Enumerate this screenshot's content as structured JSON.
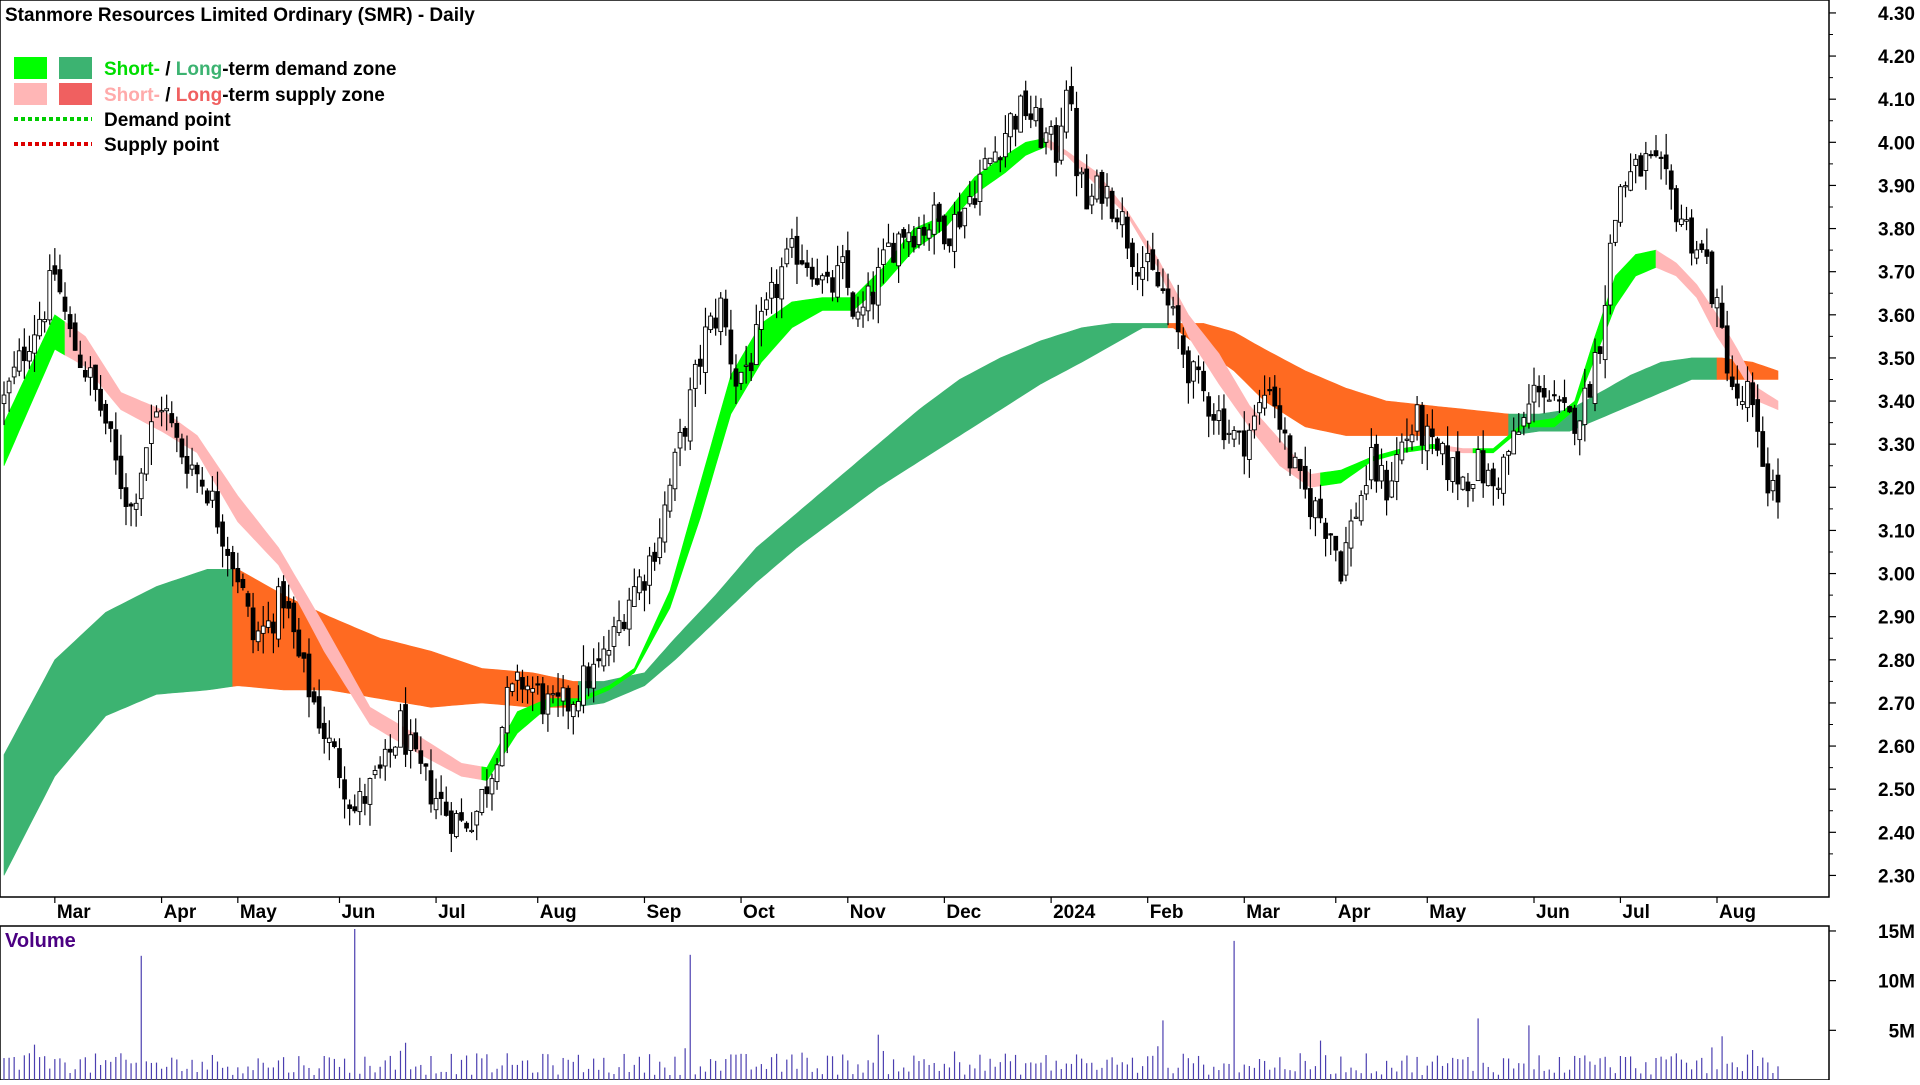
{
  "title": "Stanmore Resources Limited Ordinary (SMR) - Daily",
  "legend": {
    "demand_zone": {
      "short": "Short-",
      "sep": " / ",
      "long": "Long",
      "rest": "-term demand zone"
    },
    "supply_zone": {
      "short": "Short-",
      "sep": " / ",
      "long": "Long",
      "rest": "-term supply zone"
    },
    "demand_point": "Demand point",
    "supply_point": "Supply point"
  },
  "volume_label": "Volume",
  "colors": {
    "short_demand": "#00ff00",
    "long_demand": "#3cb371",
    "short_supply": "#ffb6b6",
    "long_supply": "#ff6a21",
    "legend_long_supply": "#f06060",
    "candle": "#000000",
    "volume_bar": "#4b3fb0",
    "volume_label": "#4b0082",
    "demand_point": "#00cc00",
    "supply_point": "#dd0000"
  },
  "chart_data": {
    "type": "line",
    "description_type": "candlestick-with-bands",
    "x_month_labels": [
      "Mar",
      "Apr",
      "May",
      "Jun",
      "Jul",
      "Aug",
      "Sep",
      "Oct",
      "Nov",
      "Dec",
      "2024",
      "Feb",
      "Mar",
      "Apr",
      "May",
      "Jun",
      "Jul",
      "Aug"
    ],
    "x_month_index": [
      10,
      31,
      46,
      66,
      85,
      105,
      126,
      145,
      166,
      185,
      206,
      225,
      244,
      262,
      280,
      301,
      318,
      337
    ],
    "total_bars": 350,
    "y_ticks": [
      "4.30",
      "4.20",
      "4.10",
      "4.00",
      "3.90",
      "3.80",
      "3.70",
      "3.60",
      "3.50",
      "3.40",
      "3.30",
      "3.20",
      "3.10",
      "3.00",
      "2.90",
      "2.80",
      "2.70",
      "2.60",
      "2.50",
      "2.40",
      "2.30"
    ],
    "ylim": [
      2.25,
      4.33
    ],
    "volume_ticks": [
      "15M",
      "10M",
      "5M"
    ],
    "volume_max": 15.5,
    "price_keyframes": [
      [
        0,
        3.4
      ],
      [
        5,
        3.55
      ],
      [
        8,
        3.62
      ],
      [
        10,
        3.7
      ],
      [
        13,
        3.55
      ],
      [
        17,
        3.45
      ],
      [
        20,
        3.35
      ],
      [
        22,
        3.25
      ],
      [
        25,
        3.15
      ],
      [
        28,
        3.3
      ],
      [
        31,
        3.4
      ],
      [
        34,
        3.3
      ],
      [
        37,
        3.25
      ],
      [
        40,
        3.2
      ],
      [
        43,
        3.1
      ],
      [
        46,
        3.0
      ],
      [
        49,
        2.85
      ],
      [
        52,
        2.88
      ],
      [
        55,
        2.95
      ],
      [
        58,
        2.8
      ],
      [
        61,
        2.7
      ],
      [
        64,
        2.6
      ],
      [
        66,
        2.55
      ],
      [
        69,
        2.45
      ],
      [
        72,
        2.5
      ],
      [
        75,
        2.55
      ],
      [
        78,
        2.65
      ],
      [
        81,
        2.55
      ],
      [
        84,
        2.5
      ],
      [
        87,
        2.45
      ],
      [
        90,
        2.42
      ],
      [
        93,
        2.45
      ],
      [
        96,
        2.55
      ],
      [
        99,
        2.7
      ],
      [
        102,
        2.75
      ],
      [
        105,
        2.72
      ],
      [
        108,
        2.68
      ],
      [
        111,
        2.7
      ],
      [
        114,
        2.75
      ],
      [
        117,
        2.78
      ],
      [
        120,
        2.85
      ],
      [
        123,
        2.95
      ],
      [
        126,
        3.0
      ],
      [
        129,
        3.1
      ],
      [
        132,
        3.25
      ],
      [
        135,
        3.4
      ],
      [
        138,
        3.55
      ],
      [
        141,
        3.62
      ],
      [
        144,
        3.45
      ],
      [
        147,
        3.5
      ],
      [
        150,
        3.6
      ],
      [
        153,
        3.7
      ],
      [
        156,
        3.75
      ],
      [
        159,
        3.72
      ],
      [
        162,
        3.65
      ],
      [
        165,
        3.7
      ],
      [
        168,
        3.58
      ],
      [
        171,
        3.65
      ],
      [
        174,
        3.75
      ],
      [
        177,
        3.8
      ],
      [
        180,
        3.8
      ],
      [
        183,
        3.82
      ],
      [
        186,
        3.8
      ],
      [
        189,
        3.85
      ],
      [
        192,
        3.92
      ],
      [
        195,
        3.98
      ],
      [
        198,
        4.05
      ],
      [
        201,
        4.08
      ],
      [
        204,
        4.02
      ],
      [
        207,
        3.98
      ],
      [
        209,
        4.15
      ],
      [
        211,
        3.95
      ],
      [
        213,
        3.85
      ],
      [
        216,
        3.9
      ],
      [
        219,
        3.85
      ],
      [
        222,
        3.75
      ],
      [
        225,
        3.7
      ],
      [
        228,
        3.65
      ],
      [
        231,
        3.55
      ],
      [
        234,
        3.45
      ],
      [
        237,
        3.4
      ],
      [
        240,
        3.35
      ],
      [
        243,
        3.3
      ],
      [
        246,
        3.35
      ],
      [
        249,
        3.45
      ],
      [
        252,
        3.3
      ],
      [
        255,
        3.2
      ],
      [
        258,
        3.15
      ],
      [
        261,
        3.1
      ],
      [
        263,
        3.02
      ],
      [
        266,
        3.15
      ],
      [
        269,
        3.25
      ],
      [
        272,
        3.2
      ],
      [
        275,
        3.3
      ],
      [
        278,
        3.35
      ],
      [
        281,
        3.28
      ],
      [
        284,
        3.25
      ],
      [
        287,
        3.22
      ],
      [
        290,
        3.25
      ],
      [
        293,
        3.2
      ],
      [
        296,
        3.28
      ],
      [
        299,
        3.35
      ],
      [
        302,
        3.45
      ],
      [
        305,
        3.38
      ],
      [
        308,
        3.35
      ],
      [
        311,
        3.4
      ],
      [
        314,
        3.55
      ],
      [
        316,
        3.75
      ],
      [
        318,
        3.9
      ],
      [
        320,
        3.92
      ],
      [
        323,
        3.95
      ],
      [
        326,
        3.92
      ],
      [
        329,
        3.85
      ],
      [
        332,
        3.78
      ],
      [
        335,
        3.72
      ],
      [
        337,
        3.6
      ],
      [
        339,
        3.5
      ],
      [
        341,
        3.38
      ],
      [
        343,
        3.42
      ],
      [
        345,
        3.3
      ],
      [
        347,
        3.22
      ],
      [
        349,
        3.18
      ]
    ],
    "short_band_keyframes": [
      [
        0,
        3.25,
        3.35
      ],
      [
        10,
        3.52,
        3.6
      ],
      [
        16,
        3.48,
        3.55
      ],
      [
        23,
        3.38,
        3.42
      ],
      [
        31,
        3.33,
        3.38
      ],
      [
        38,
        3.28,
        3.32
      ],
      [
        46,
        3.12,
        3.18
      ],
      [
        54,
        3.02,
        3.06
      ],
      [
        63,
        2.82,
        2.88
      ],
      [
        72,
        2.65,
        2.69
      ],
      [
        82,
        2.58,
        2.62
      ],
      [
        90,
        2.53,
        2.56
      ],
      [
        95,
        2.52,
        2.55
      ],
      [
        101,
        2.63,
        2.68
      ],
      [
        107,
        2.69,
        2.71
      ],
      [
        113,
        2.7,
        2.71
      ],
      [
        119,
        2.73,
        2.74
      ],
      [
        124,
        2.77,
        2.78
      ],
      [
        131,
        2.92,
        2.96
      ],
      [
        137,
        3.13,
        3.21
      ],
      [
        143,
        3.37,
        3.46
      ],
      [
        149,
        3.49,
        3.58
      ],
      [
        155,
        3.57,
        3.63
      ],
      [
        161,
        3.61,
        3.64
      ],
      [
        167,
        3.61,
        3.64
      ],
      [
        173,
        3.67,
        3.71
      ],
      [
        179,
        3.75,
        3.8
      ],
      [
        185,
        3.8,
        3.83
      ],
      [
        191,
        3.88,
        3.92
      ],
      [
        197,
        3.93,
        3.97
      ],
      [
        201,
        3.97,
        4.0
      ],
      [
        205,
        3.99,
        4.01
      ],
      [
        209,
        3.97,
        3.98
      ],
      [
        215,
        3.9,
        3.93
      ],
      [
        221,
        3.83,
        3.84
      ],
      [
        227,
        3.71,
        3.73
      ],
      [
        233,
        3.55,
        3.6
      ],
      [
        239,
        3.44,
        3.51
      ],
      [
        245,
        3.34,
        3.39
      ],
      [
        251,
        3.25,
        3.31
      ],
      [
        257,
        3.2,
        3.23
      ],
      [
        263,
        3.21,
        3.24
      ],
      [
        269,
        3.26,
        3.27
      ],
      [
        275,
        3.28,
        3.29
      ],
      [
        281,
        3.29,
        3.3
      ],
      [
        287,
        3.28,
        3.29
      ],
      [
        293,
        3.28,
        3.29
      ],
      [
        299,
        3.34,
        3.35
      ],
      [
        305,
        3.34,
        3.36
      ],
      [
        309,
        3.38,
        3.4
      ],
      [
        313,
        3.5,
        3.55
      ],
      [
        317,
        3.62,
        3.69
      ],
      [
        321,
        3.69,
        3.74
      ],
      [
        325,
        3.71,
        3.75
      ],
      [
        329,
        3.69,
        3.72
      ],
      [
        333,
        3.64,
        3.67
      ],
      [
        337,
        3.55,
        3.6
      ],
      [
        341,
        3.48,
        3.52
      ],
      [
        345,
        3.4,
        3.43
      ],
      [
        349,
        3.38,
        3.4
      ]
    ],
    "long_band_keyframes": [
      [
        0,
        2.3,
        2.58
      ],
      [
        10,
        2.53,
        2.8
      ],
      [
        20,
        2.67,
        2.91
      ],
      [
        30,
        2.72,
        2.97
      ],
      [
        40,
        2.73,
        3.01
      ],
      [
        46,
        2.74,
        3.01
      ],
      [
        55,
        2.73,
        2.95
      ],
      [
        64,
        2.73,
        2.9
      ],
      [
        74,
        2.71,
        2.85
      ],
      [
        84,
        2.69,
        2.82
      ],
      [
        94,
        2.7,
        2.78
      ],
      [
        104,
        2.69,
        2.77
      ],
      [
        112,
        2.69,
        2.75
      ],
      [
        118,
        2.7,
        2.75
      ],
      [
        126,
        2.74,
        2.77
      ],
      [
        132,
        2.8,
        2.85
      ],
      [
        140,
        2.89,
        2.95
      ],
      [
        148,
        2.98,
        3.06
      ],
      [
        156,
        3.06,
        3.14
      ],
      [
        164,
        3.13,
        3.22
      ],
      [
        172,
        3.2,
        3.3
      ],
      [
        180,
        3.26,
        3.38
      ],
      [
        188,
        3.32,
        3.45
      ],
      [
        196,
        3.38,
        3.5
      ],
      [
        204,
        3.44,
        3.54
      ],
      [
        212,
        3.49,
        3.57
      ],
      [
        218,
        3.53,
        3.58
      ],
      [
        224,
        3.57,
        3.58
      ],
      [
        230,
        3.57,
        3.58
      ],
      [
        236,
        3.52,
        3.58
      ],
      [
        242,
        3.47,
        3.56
      ],
      [
        248,
        3.4,
        3.52
      ],
      [
        256,
        3.34,
        3.47
      ],
      [
        264,
        3.32,
        3.43
      ],
      [
        272,
        3.32,
        3.4
      ],
      [
        280,
        3.32,
        3.39
      ],
      [
        288,
        3.32,
        3.38
      ],
      [
        296,
        3.32,
        3.37
      ],
      [
        302,
        3.33,
        3.37
      ],
      [
        308,
        3.33,
        3.38
      ],
      [
        314,
        3.36,
        3.42
      ],
      [
        320,
        3.39,
        3.46
      ],
      [
        326,
        3.42,
        3.49
      ],
      [
        332,
        3.45,
        3.5
      ],
      [
        338,
        3.45,
        3.5
      ],
      [
        344,
        3.45,
        3.49
      ],
      [
        349,
        3.45,
        3.47
      ]
    ],
    "volume_spikes": [
      [
        27,
        12.5
      ],
      [
        69,
        15.2
      ],
      [
        135,
        12.6
      ],
      [
        228,
        6.0
      ],
      [
        242,
        14.0
      ],
      [
        290,
        6.2
      ],
      [
        300,
        5.5
      ],
      [
        338,
        4.4
      ]
    ],
    "volume_baseline": 2.0
  }
}
